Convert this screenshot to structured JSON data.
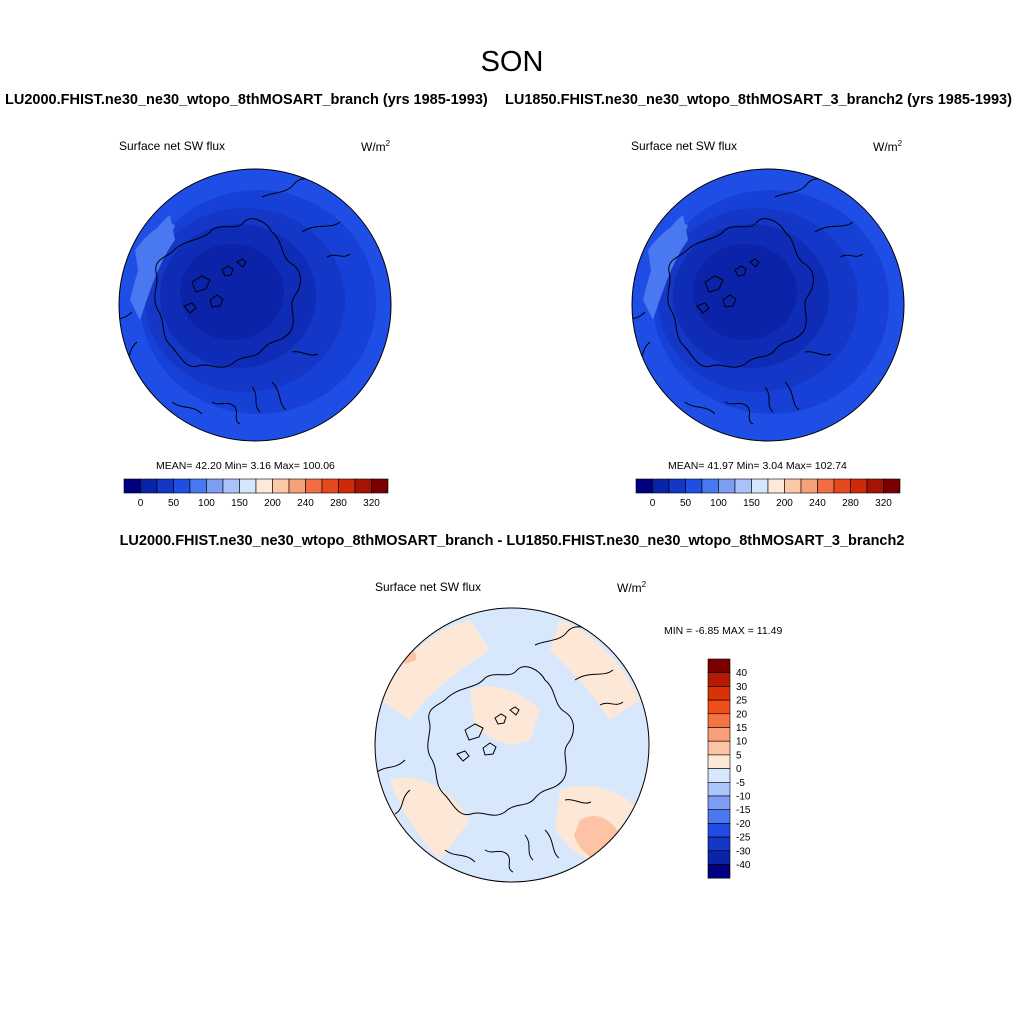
{
  "title": "SON",
  "panels": [
    {
      "case_title": "LU2000.FHIST.ne30_ne30_wtopo_8thMOSART_branch (yrs 1985-1993)",
      "variable": "Surface net SW flux",
      "units_base": "W/m",
      "units_exp": "2",
      "stats": "MEAN=  42.20  Min=   3.16  Max= 100.06",
      "mean": 42.2,
      "min": 3.16,
      "max": 100.06
    },
    {
      "case_title": "LU1850.FHIST.ne30_ne30_wtopo_8thMOSART_3_branch2 (yrs 1985-1993)",
      "variable": "Surface net SW flux",
      "units_base": "W/m",
      "units_exp": "2",
      "stats": "MEAN=  41.97  Min=   3.04  Max= 102.74",
      "mean": 41.97,
      "min": 3.04,
      "max": 102.74
    }
  ],
  "top_colorbar": {
    "labels": [
      "0",
      "50",
      "100",
      "150",
      "200",
      "240",
      "280",
      "320"
    ],
    "colors": [
      "#000080",
      "#0b23a8",
      "#1437c8",
      "#1f4ee6",
      "#4a78f0",
      "#7d9ef5",
      "#a9c3f9",
      "#d4e6fc",
      "#fde9d8",
      "#fbc9a9",
      "#f7a07a",
      "#f26e42",
      "#e8471b",
      "#cc2a08",
      "#a51404",
      "#7a0000"
    ]
  },
  "diff": {
    "title": "LU2000.FHIST.ne30_ne30_wtopo_8thMOSART_branch - LU1850.FHIST.ne30_ne30_wtopo_8thMOSART_3_branch2",
    "variable": "Surface net SW flux",
    "units_base": "W/m",
    "units_exp": "2",
    "minmax": "MIN =  -6.85 MAX =  11.49",
    "min": -6.85,
    "max": 11.49
  },
  "diff_colorbar": {
    "labels": [
      "40",
      "30",
      "25",
      "20",
      "15",
      "10",
      "5",
      "0",
      "-5",
      "-10",
      "-15",
      "-20",
      "-25",
      "-30",
      "-40"
    ],
    "colors": [
      "#7a0000",
      "#b41a05",
      "#d93208",
      "#f04e16",
      "#f57444",
      "#f99e78",
      "#fcc4a4",
      "#fde7d7",
      "#d8e8fc",
      "#aac6fa",
      "#7d9ef5",
      "#4a78f0",
      "#1f4ee6",
      "#1437c8",
      "#0b23a8",
      "#000080"
    ]
  }
}
